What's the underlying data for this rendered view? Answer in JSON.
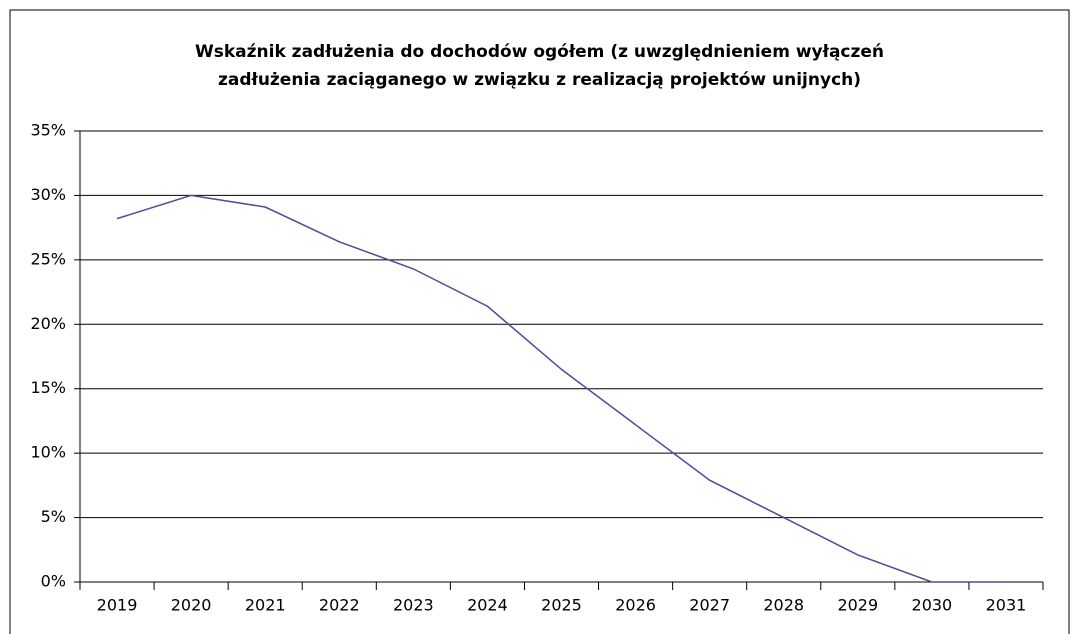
{
  "chart_data": {
    "type": "line",
    "title": "Wskaźnik zadłużenia do dochodów ogółem  (z uwzględnieniem wyłączeń\nzadłużenia zaciąganego  w związku z realizacją projektów unijnych)",
    "categories": [
      "2019",
      "2020",
      "2021",
      "2022",
      "2023",
      "2024",
      "2025",
      "2026",
      "2027",
      "2028",
      "2029",
      "2030",
      "2031"
    ],
    "series": [
      {
        "name": "Wskaźnik zadłużenia",
        "color": "#4d4d94",
        "values": [
          28.2,
          30.0,
          29.1,
          26.4,
          24.3,
          21.4,
          16.5,
          12.2,
          7.9,
          5.0,
          2.1,
          0,
          0
        ]
      }
    ],
    "ylim": [
      0,
      35
    ],
    "yticks": [
      {
        "value": 0,
        "label": "0%"
      },
      {
        "value": 5,
        "label": "5%"
      },
      {
        "value": 10,
        "label": "10%"
      },
      {
        "value": 15,
        "label": "15%"
      },
      {
        "value": 20,
        "label": "20%"
      },
      {
        "value": 25,
        "label": "25%"
      },
      {
        "value": 30,
        "label": "30%"
      },
      {
        "value": 35,
        "label": "35%"
      }
    ],
    "grid": true
  }
}
